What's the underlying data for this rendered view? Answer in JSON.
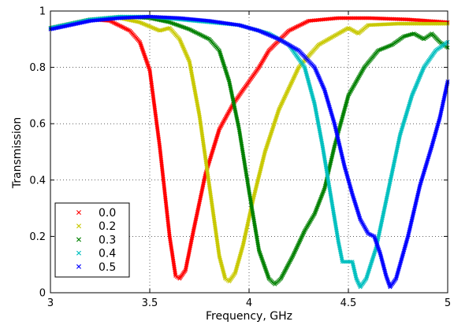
{
  "chart_data": {
    "type": "scatter",
    "title": "",
    "xlabel": "Frequency, GHz",
    "ylabel": "Transmission",
    "xlim": [
      3,
      5
    ],
    "ylim": [
      0,
      1
    ],
    "xticks": [
      "3",
      "3.5",
      "4",
      "4.5",
      "5"
    ],
    "yticks": [
      "0",
      "0.2",
      "0.4",
      "0.6",
      "0.8",
      "1"
    ],
    "grid": true,
    "legend_position": "lower-left",
    "marker": "x",
    "series": [
      {
        "name": "0.0",
        "color": "#ff0000",
        "points": [
          [
            3.0,
            0.94
          ],
          [
            3.1,
            0.955
          ],
          [
            3.2,
            0.97
          ],
          [
            3.3,
            0.965
          ],
          [
            3.4,
            0.93
          ],
          [
            3.45,
            0.89
          ],
          [
            3.5,
            0.79
          ],
          [
            3.55,
            0.52
          ],
          [
            3.6,
            0.2
          ],
          [
            3.63,
            0.06
          ],
          [
            3.65,
            0.05
          ],
          [
            3.68,
            0.08
          ],
          [
            3.72,
            0.22
          ],
          [
            3.78,
            0.42
          ],
          [
            3.85,
            0.58
          ],
          [
            3.92,
            0.67
          ],
          [
            4.0,
            0.75
          ],
          [
            4.05,
            0.8
          ],
          [
            4.1,
            0.86
          ],
          [
            4.2,
            0.93
          ],
          [
            4.3,
            0.965
          ],
          [
            4.45,
            0.975
          ],
          [
            4.6,
            0.975
          ],
          [
            4.8,
            0.97
          ],
          [
            5.0,
            0.96
          ]
        ]
      },
      {
        "name": "0.2",
        "color": "#c8c800",
        "points": [
          [
            3.0,
            0.94
          ],
          [
            3.1,
            0.955
          ],
          [
            3.2,
            0.97
          ],
          [
            3.35,
            0.975
          ],
          [
            3.45,
            0.96
          ],
          [
            3.55,
            0.93
          ],
          [
            3.6,
            0.94
          ],
          [
            3.65,
            0.9
          ],
          [
            3.7,
            0.82
          ],
          [
            3.75,
            0.63
          ],
          [
            3.8,
            0.38
          ],
          [
            3.85,
            0.13
          ],
          [
            3.88,
            0.05
          ],
          [
            3.9,
            0.04
          ],
          [
            3.93,
            0.07
          ],
          [
            3.97,
            0.17
          ],
          [
            4.02,
            0.33
          ],
          [
            4.08,
            0.5
          ],
          [
            4.15,
            0.65
          ],
          [
            4.25,
            0.8
          ],
          [
            4.35,
            0.88
          ],
          [
            4.45,
            0.92
          ],
          [
            4.5,
            0.94
          ],
          [
            4.55,
            0.92
          ],
          [
            4.6,
            0.95
          ],
          [
            4.75,
            0.955
          ],
          [
            5.0,
            0.955
          ]
        ]
      },
      {
        "name": "0.3",
        "color": "#008000",
        "points": [
          [
            3.0,
            0.94
          ],
          [
            3.1,
            0.955
          ],
          [
            3.2,
            0.97
          ],
          [
            3.35,
            0.98
          ],
          [
            3.5,
            0.975
          ],
          [
            3.6,
            0.96
          ],
          [
            3.7,
            0.935
          ],
          [
            3.8,
            0.9
          ],
          [
            3.85,
            0.86
          ],
          [
            3.9,
            0.75
          ],
          [
            3.95,
            0.58
          ],
          [
            4.0,
            0.36
          ],
          [
            4.05,
            0.15
          ],
          [
            4.1,
            0.05
          ],
          [
            4.13,
            0.03
          ],
          [
            4.16,
            0.05
          ],
          [
            4.22,
            0.13
          ],
          [
            4.28,
            0.22
          ],
          [
            4.33,
            0.28
          ],
          [
            4.38,
            0.37
          ],
          [
            4.43,
            0.52
          ],
          [
            4.5,
            0.7
          ],
          [
            4.58,
            0.8
          ],
          [
            4.65,
            0.86
          ],
          [
            4.72,
            0.88
          ],
          [
            4.78,
            0.91
          ],
          [
            4.83,
            0.92
          ],
          [
            4.88,
            0.9
          ],
          [
            4.92,
            0.92
          ],
          [
            4.96,
            0.89
          ],
          [
            5.0,
            0.87
          ]
        ]
      },
      {
        "name": "0.4",
        "color": "#00bfbf",
        "points": [
          [
            3.0,
            0.94
          ],
          [
            3.1,
            0.955
          ],
          [
            3.2,
            0.97
          ],
          [
            3.35,
            0.98
          ],
          [
            3.5,
            0.98
          ],
          [
            3.65,
            0.97
          ],
          [
            3.8,
            0.96
          ],
          [
            3.95,
            0.95
          ],
          [
            4.1,
            0.92
          ],
          [
            4.2,
            0.88
          ],
          [
            4.28,
            0.8
          ],
          [
            4.33,
            0.67
          ],
          [
            4.37,
            0.52
          ],
          [
            4.41,
            0.35
          ],
          [
            4.45,
            0.18
          ],
          [
            4.47,
            0.11
          ],
          [
            4.52,
            0.11
          ],
          [
            4.54,
            0.05
          ],
          [
            4.56,
            0.02
          ],
          [
            4.59,
            0.05
          ],
          [
            4.64,
            0.16
          ],
          [
            4.7,
            0.36
          ],
          [
            4.76,
            0.56
          ],
          [
            4.82,
            0.7
          ],
          [
            4.88,
            0.8
          ],
          [
            4.94,
            0.86
          ],
          [
            5.0,
            0.89
          ]
        ]
      },
      {
        "name": "0.5",
        "color": "#0000ff",
        "points": [
          [
            3.0,
            0.935
          ],
          [
            3.1,
            0.95
          ],
          [
            3.2,
            0.965
          ],
          [
            3.35,
            0.975
          ],
          [
            3.5,
            0.98
          ],
          [
            3.65,
            0.975
          ],
          [
            3.8,
            0.965
          ],
          [
            3.95,
            0.95
          ],
          [
            4.05,
            0.93
          ],
          [
            4.15,
            0.9
          ],
          [
            4.25,
            0.86
          ],
          [
            4.33,
            0.8
          ],
          [
            4.38,
            0.72
          ],
          [
            4.43,
            0.6
          ],
          [
            4.48,
            0.45
          ],
          [
            4.52,
            0.35
          ],
          [
            4.56,
            0.26
          ],
          [
            4.6,
            0.21
          ],
          [
            4.63,
            0.2
          ],
          [
            4.66,
            0.14
          ],
          [
            4.69,
            0.06
          ],
          [
            4.71,
            0.02
          ],
          [
            4.74,
            0.05
          ],
          [
            4.8,
            0.2
          ],
          [
            4.86,
            0.38
          ],
          [
            4.92,
            0.52
          ],
          [
            4.96,
            0.62
          ],
          [
            5.0,
            0.75
          ]
        ]
      }
    ]
  }
}
